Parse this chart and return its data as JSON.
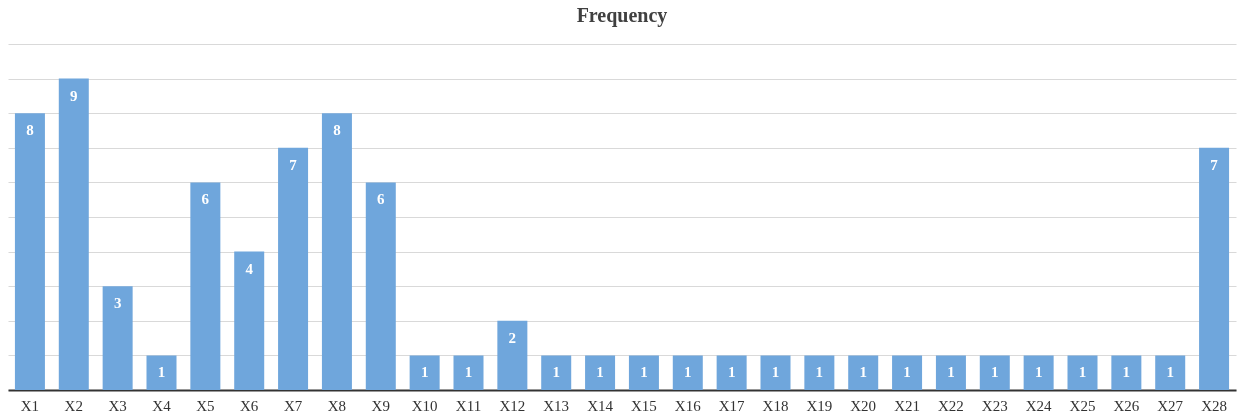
{
  "chart_data": {
    "type": "bar",
    "title": "Frequency",
    "categories": [
      "X1",
      "X2",
      "X3",
      "X4",
      "X5",
      "X6",
      "X7",
      "X8",
      "X9",
      "X10",
      "X11",
      "X12",
      "X13",
      "X14",
      "X15",
      "X16",
      "X17",
      "X18",
      "X19",
      "X20",
      "X21",
      "X22",
      "X23",
      "X24",
      "X25",
      "X26",
      "X27",
      "X28"
    ],
    "values": [
      8,
      9,
      3,
      1,
      6,
      4,
      7,
      8,
      6,
      1,
      1,
      2,
      1,
      1,
      1,
      1,
      1,
      1,
      1,
      1,
      1,
      1,
      1,
      1,
      1,
      1,
      1,
      7
    ],
    "color": "#6fa6dc",
    "ylim": [
      0,
      10
    ],
    "yticks": [
      {
        "value": 0,
        "label": null
      },
      {
        "value": 1,
        "label": null
      },
      {
        "value": 2,
        "label": null
      },
      {
        "value": 3,
        "label": null
      },
      {
        "value": 4,
        "label": null
      },
      {
        "value": 5,
        "label": null
      },
      {
        "value": 6,
        "label": null
      },
      {
        "value": 7,
        "label": null
      },
      {
        "value": 8,
        "label": null
      },
      {
        "value": 9,
        "label": null
      },
      {
        "value": 10,
        "label": null
      }
    ],
    "grid": "y",
    "tick_labels": "x",
    "data_labels": true
  }
}
